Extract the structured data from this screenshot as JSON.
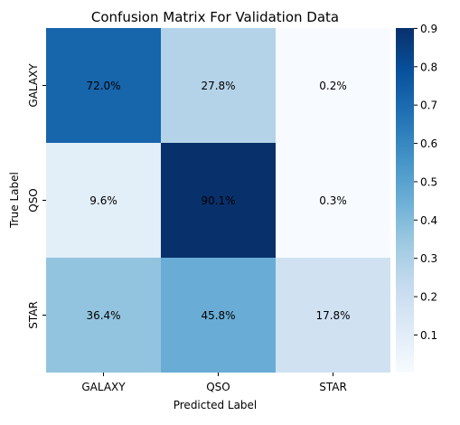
{
  "chart_data": {
    "type": "heatmap",
    "title": "Confusion Matrix For Validation Data",
    "xlabel": "Predicted Label",
    "ylabel": "True Label",
    "x_categories": [
      "GALAXY",
      "QSO",
      "STAR"
    ],
    "y_categories": [
      "GALAXY",
      "QSO",
      "STAR"
    ],
    "values": [
      [
        0.72,
        0.278,
        0.002
      ],
      [
        0.096,
        0.901,
        0.003
      ],
      [
        0.364,
        0.458,
        0.178
      ]
    ],
    "labels": [
      [
        "72.0%",
        "27.8%",
        "0.2%"
      ],
      [
        "9.6%",
        "90.1%",
        "0.3%"
      ],
      [
        "36.4%",
        "45.8%",
        "17.8%"
      ]
    ],
    "colormap": "Blues",
    "colorbar": {
      "range": [
        0.002,
        0.901
      ],
      "ticks": [
        0.1,
        0.2,
        0.3,
        0.4,
        0.5,
        0.6,
        0.7,
        0.8,
        0.9
      ],
      "tick_labels": [
        "0.1",
        "0.2",
        "0.3",
        "0.4",
        "0.5",
        "0.6",
        "0.7",
        "0.8",
        "0.9"
      ]
    }
  }
}
